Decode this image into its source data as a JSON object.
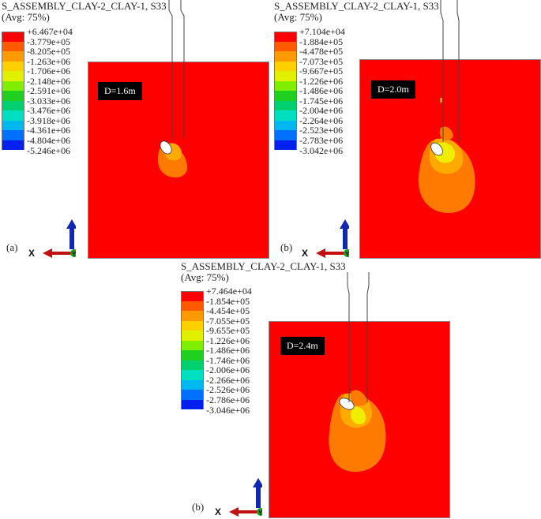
{
  "panels": [
    {
      "title_line1": "S_ASSEMBLY_CLAY-2_CLAY-1, S33",
      "title_line2": "(Avg: 75%)",
      "legend": [
        "+6.467e+04",
        "-3.779e+05",
        "-8.205e+05",
        "-1.263e+06",
        "-1.706e+06",
        "-2.148e+06",
        "-2.591e+06",
        "-3.033e+06",
        "-3.476e+06",
        "-3.918e+06",
        "-4.361e+06",
        "-4.804e+06",
        "-5.246e+06"
      ],
      "tag": "D=1.6m",
      "label": "(a)",
      "axis_z": "Z",
      "axis_x": "X",
      "axis_y": "Y"
    },
    {
      "title_line1": "S_ASSEMBLY_CLAY-2_CLAY-1, S33",
      "title_line2": "(Avg: 75%)",
      "legend": [
        "+7.104e+04",
        "-1.884e+05",
        "-4.478e+05",
        "-7.073e+05",
        "-9.667e+05",
        "-1.226e+06",
        "-1.486e+06",
        "-1.745e+06",
        "-2.004e+06",
        "-2.264e+06",
        "-2.523e+06",
        "-2.783e+06",
        "-3.042e+06"
      ],
      "tag": "D=2.0m",
      "label": "(b)",
      "axis_z": "Z",
      "axis_x": "X",
      "axis_y": "Y"
    },
    {
      "title_line1": "S_ASSEMBLY_CLAY-2_CLAY-1, S33",
      "title_line2": "(Avg: 75%)",
      "legend": [
        "+7.464e+04",
        "-1.854e+05",
        "-4.454e+05",
        "-7.055e+05",
        "-9.655e+05",
        "-1.226e+06",
        "-1.486e+06",
        "-1.746e+06",
        "-2.006e+06",
        "-2.266e+06",
        "-2.526e+06",
        "-2.786e+06",
        "-3.046e+06"
      ],
      "tag": "D=2.4m",
      "label": "(b)",
      "axis_z": "Z",
      "axis_x": "X",
      "axis_y": "Y"
    }
  ],
  "colors": {
    "legend_bands": [
      "#ff0000",
      "#ff5a00",
      "#ff9a00",
      "#ffd000",
      "#e0f000",
      "#80ee00",
      "#20d020",
      "#00d070",
      "#00e0c0",
      "#00b8f0",
      "#0070ff",
      "#0020f0"
    ],
    "field_background": "#ff0000",
    "contour_orange": "#ff7a00",
    "contour_light_orange": "#ffaa00",
    "contour_yellow": "#f0ee00",
    "axis_z": "#1028b0",
    "axis_x": "#c01010",
    "axis_y": "#18a018"
  }
}
